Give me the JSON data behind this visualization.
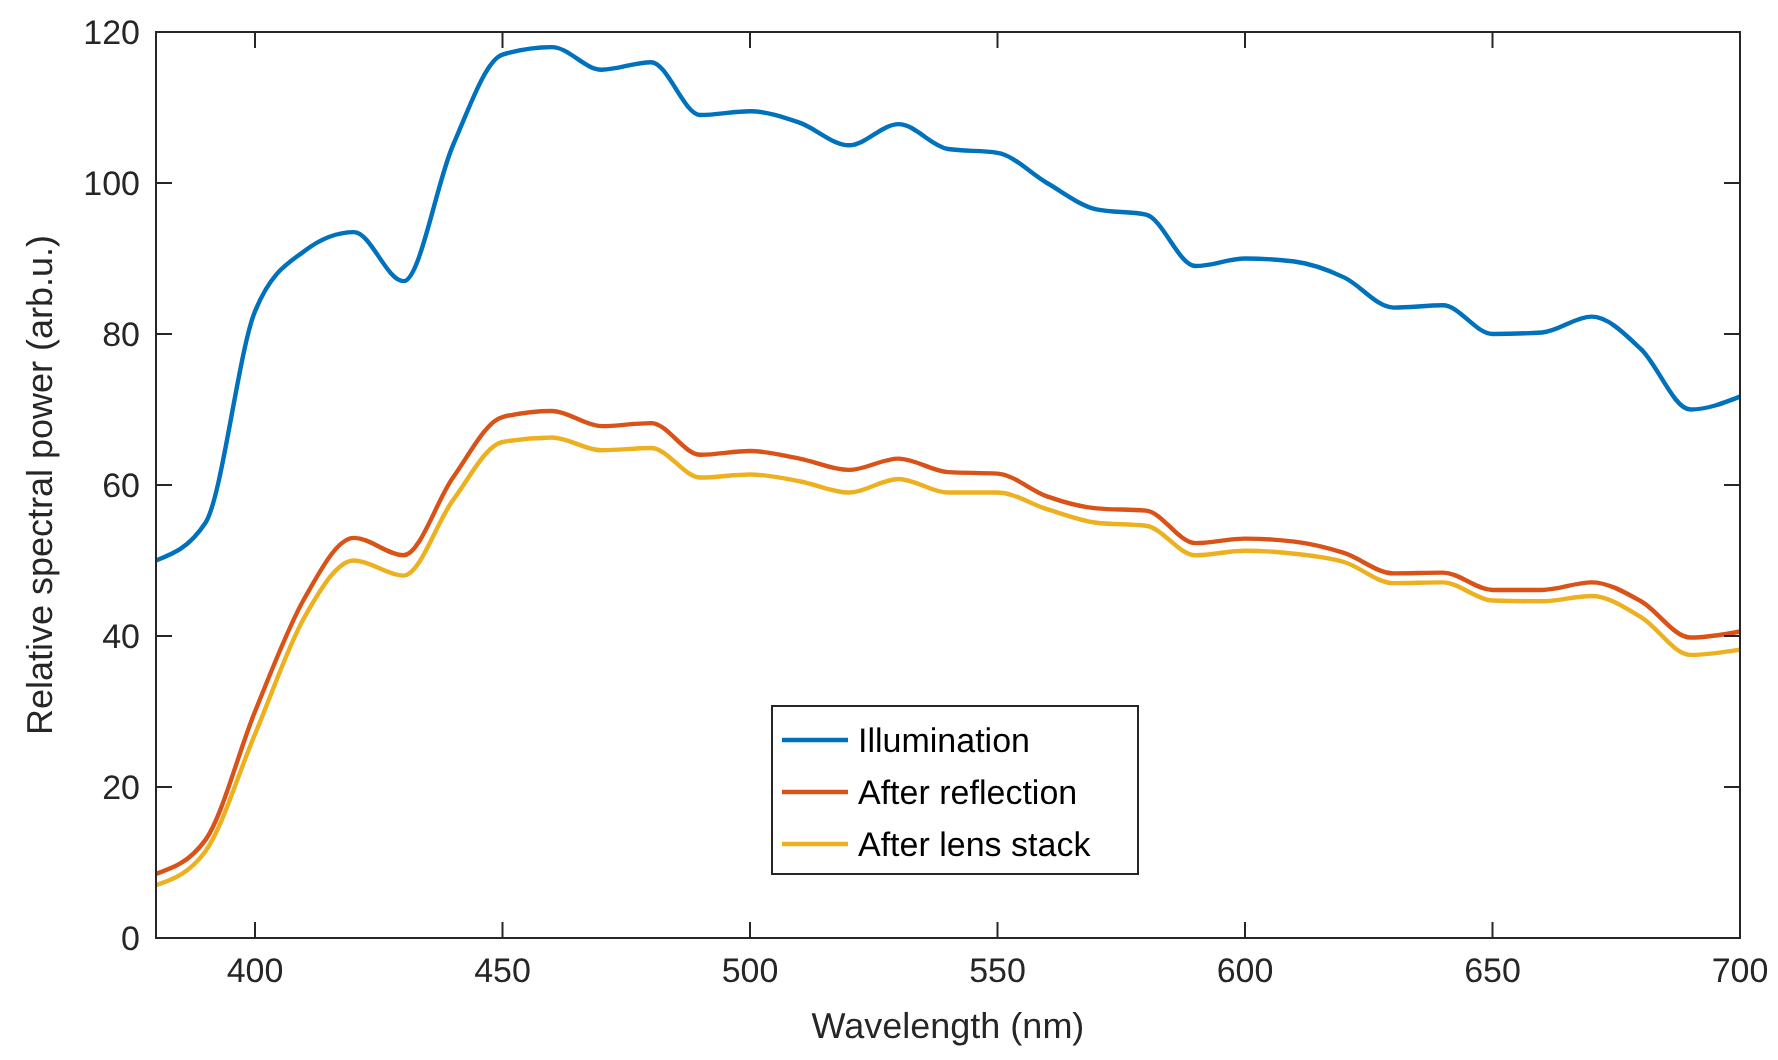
{
  "chart_data": {
    "type": "line",
    "xlabel": "Wavelength (nm)",
    "ylabel": "Relative spectral power (arb.u.)",
    "x": [
      380,
      390,
      400,
      410,
      420,
      430,
      440,
      450,
      460,
      470,
      480,
      490,
      500,
      510,
      520,
      530,
      540,
      550,
      560,
      570,
      580,
      590,
      600,
      610,
      620,
      630,
      640,
      650,
      660,
      670,
      680,
      690,
      700
    ],
    "series": [
      {
        "name": "Illumination",
        "color": "#0072bd",
        "values": [
          50,
          55,
          83,
          91,
          93.5,
          87,
          105,
          117,
          118,
          115,
          116,
          109,
          109.5,
          108,
          105,
          107.8,
          104.5,
          104,
          100,
          96.5,
          95.8,
          89,
          90,
          89.6,
          87.5,
          83.5,
          83.8,
          80,
          80.2,
          82.3,
          78,
          70,
          71.7
        ]
      },
      {
        "name": "After reflection",
        "color": "#d95319",
        "values": [
          8.5,
          13,
          30,
          45,
          53,
          50.7,
          61,
          69,
          69.8,
          67.8,
          68.2,
          64,
          64.5,
          63.5,
          62,
          63.5,
          61.7,
          61.5,
          58.5,
          56.9,
          56.6,
          52.3,
          52.9,
          52.5,
          51,
          48.3,
          48.4,
          46.1,
          46.1,
          47.1,
          44.6,
          39.8,
          40.6
        ]
      },
      {
        "name": "After lens stack",
        "color": "#edb120",
        "values": [
          7,
          11.5,
          27,
          42.5,
          50,
          48,
          58,
          65.7,
          66.3,
          64.6,
          64.9,
          61,
          61.4,
          60.5,
          59,
          60.8,
          59,
          59,
          56.8,
          55,
          54.6,
          50.7,
          51.3,
          50.9,
          49.8,
          47,
          47.1,
          44.7,
          44.6,
          45.3,
          42.5,
          37.5,
          38.2
        ]
      }
    ],
    "xlim": [
      380,
      700
    ],
    "xticks": [
      400,
      450,
      500,
      550,
      600,
      650,
      700
    ],
    "ylim": [
      0,
      120
    ],
    "yticks": [
      0,
      20,
      40,
      60,
      80,
      100,
      120
    ],
    "grid": false,
    "legend": "bottom",
    "line_style": "solid",
    "marker": "none"
  }
}
